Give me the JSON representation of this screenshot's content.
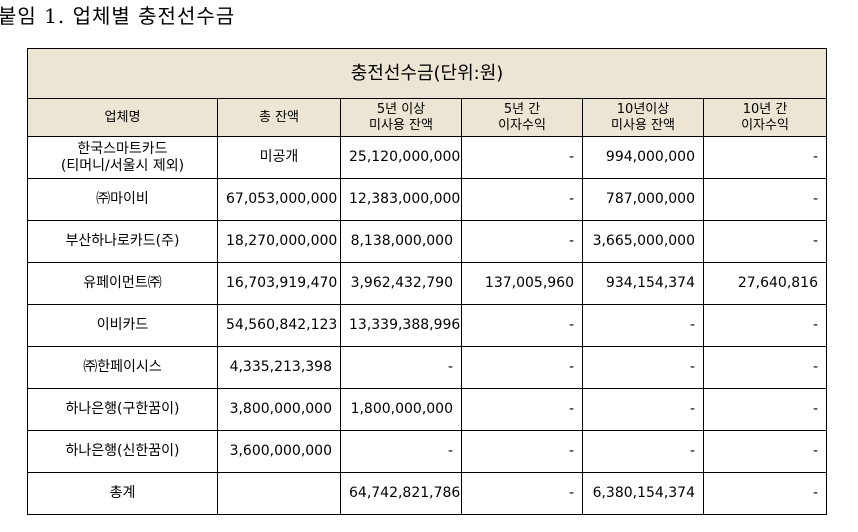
{
  "header": {
    "title": "붙임 1. 업체별 충전선수금"
  },
  "table": {
    "caption": "충전선수금(단위:원)",
    "columns": [
      "업체명",
      "총 잔액",
      "5년 이상\n미사용 잔액",
      "5년 간\n이자수익",
      "10년이상\n미사용 잔액",
      "10년 간\n이자수익"
    ],
    "rows": [
      [
        "한국스마트카드\n(티머니/서울시 제외)",
        "미공개",
        "25,120,000,000",
        "-",
        "994,000,000",
        "-"
      ],
      [
        "㈜마이비",
        "67,053,000,000",
        "12,383,000,000",
        "-",
        "787,000,000",
        "-"
      ],
      [
        "부산하나로카드(주)",
        "18,270,000,000",
        "8,138,000,000",
        "-",
        "3,665,000,000",
        "-"
      ],
      [
        "유페이먼트㈜",
        "16,703,919,470",
        "3,962,432,790",
        "137,005,960",
        "934,154,374",
        "27,640,816"
      ],
      [
        "이비카드",
        "54,560,842,123",
        "13,339,388,996",
        "-",
        "-",
        "-"
      ],
      [
        "㈜한페이시스",
        "4,335,213,398",
        "-",
        "-",
        "-",
        "-"
      ],
      [
        "하나은행(구한꿈이)",
        "3,800,000,000",
        "1,800,000,000",
        "-",
        "-",
        "-"
      ],
      [
        "하나은행(신한꿈이)",
        "3,600,000,000",
        "-",
        "-",
        "-",
        "-"
      ],
      [
        "총계",
        null,
        "64,742,821,786",
        "-",
        "6,380,154,374",
        "-"
      ]
    ]
  }
}
